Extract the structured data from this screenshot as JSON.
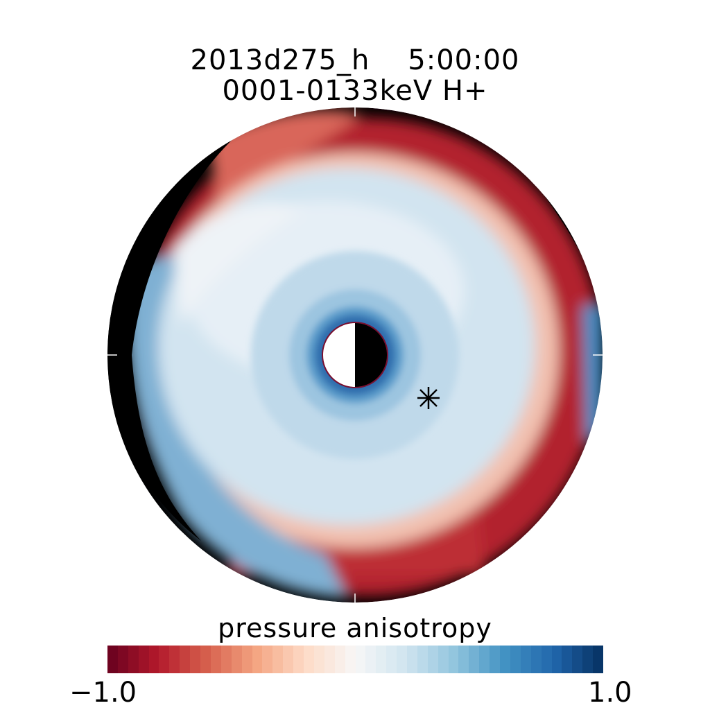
{
  "chart_data": {
    "type": "heatmap",
    "title": "2013d275_h    5:00:00",
    "subtitle": "0001-0133keV H+",
    "colorbar": {
      "label": "pressure anisotropy",
      "min": -1.0,
      "max": 1.0,
      "tick_labels": [
        "−1.0",
        "1.0"
      ],
      "colormap": "red-white-blue (diverging)",
      "colors": [
        "#67001f",
        "#b2182b",
        "#d6604d",
        "#f4a582",
        "#fddbc7",
        "#f7f7f7",
        "#d1e5f0",
        "#92c5de",
        "#4393c3",
        "#2166ac",
        "#053061"
      ]
    },
    "projection": "polar equatorial map, sun to the right",
    "marker": "asterisk",
    "earth_disk": "half white (dayside) / half black (nightside)",
    "regions": [
      {
        "name": "inner ring near Earth",
        "approx_value": 0.7
      },
      {
        "name": "inner region",
        "approx_value": 0.2
      },
      {
        "name": "outer ring (dusk to noon)",
        "approx_value": -0.8
      },
      {
        "name": "nightside edge",
        "approx_value": 0.4
      },
      {
        "name": "off-grid area",
        "approx_value": null
      }
    ]
  }
}
